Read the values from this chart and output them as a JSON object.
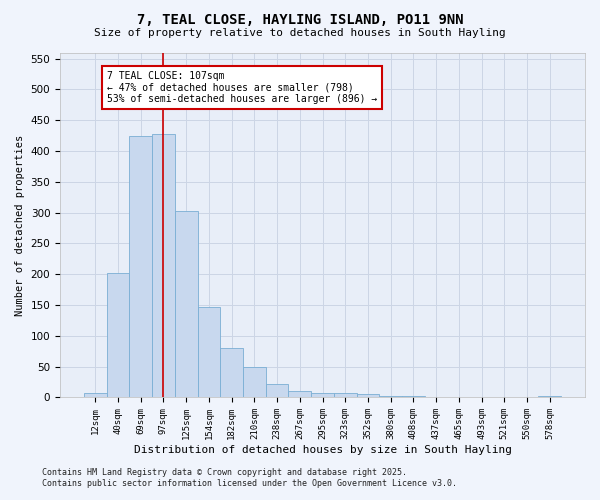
{
  "title_line1": "7, TEAL CLOSE, HAYLING ISLAND, PO11 9NN",
  "title_line2": "Size of property relative to detached houses in South Hayling",
  "xlabel": "Distribution of detached houses by size in South Hayling",
  "ylabel": "Number of detached properties",
  "categories": [
    "12sqm",
    "40sqm",
    "69sqm",
    "97sqm",
    "125sqm",
    "154sqm",
    "182sqm",
    "210sqm",
    "238sqm",
    "267sqm",
    "295sqm",
    "323sqm",
    "352sqm",
    "380sqm",
    "408sqm",
    "437sqm",
    "465sqm",
    "493sqm",
    "521sqm",
    "550sqm",
    "578sqm"
  ],
  "values": [
    8,
    202,
    425,
    428,
    302,
    147,
    80,
    50,
    22,
    11,
    8,
    7,
    6,
    3,
    2,
    1,
    0,
    0,
    0,
    0,
    3
  ],
  "bar_color": "#c8d8ee",
  "bar_edge_color": "#7aaed4",
  "grid_color": "#ccd5e5",
  "bg_color": "#e8eef8",
  "fig_color": "#f0f4fc",
  "red_line_x": 3,
  "annotation_text": "7 TEAL CLOSE: 107sqm\n← 47% of detached houses are smaller (798)\n53% of semi-detached houses are larger (896) →",
  "annotation_box_color": "#ffffff",
  "annotation_border_color": "#cc0000",
  "footer_line1": "Contains HM Land Registry data © Crown copyright and database right 2025.",
  "footer_line2": "Contains public sector information licensed under the Open Government Licence v3.0.",
  "ylim": [
    0,
    560
  ],
  "yticks": [
    0,
    50,
    100,
    150,
    200,
    250,
    300,
    350,
    400,
    450,
    500,
    550
  ]
}
